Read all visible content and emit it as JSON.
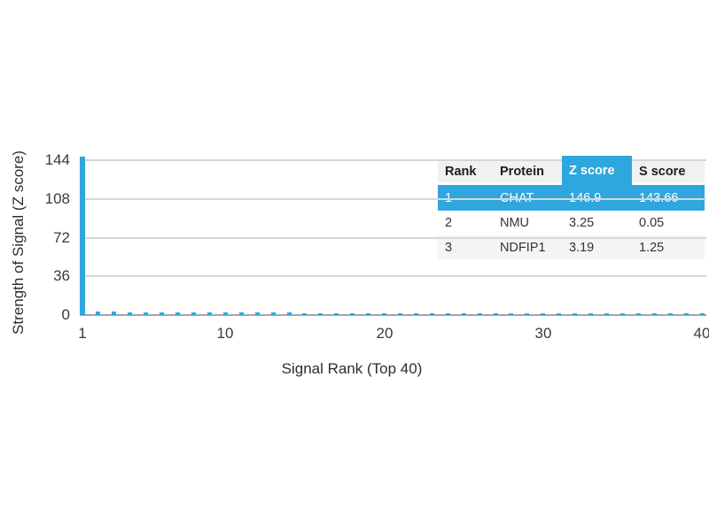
{
  "figure": {
    "background": "#ffffff",
    "accent_color": "#2fa6de",
    "grid_color": "#d6d6d6",
    "axis_color": "#a5a5a5",
    "text_color": "#2d2d2d",
    "row_alt_color": "#f5f5f5",
    "header_bg_color": "#f1f1f1"
  },
  "chart_data": {
    "type": "bar",
    "title": "",
    "xlabel": "Signal Rank (Top 40)",
    "ylabel": "Strength of Signal (Z score)",
    "x_ticks": [
      1,
      10,
      20,
      30,
      40
    ],
    "y_ticks": [
      0,
      36,
      72,
      108,
      144
    ],
    "xlim": [
      1,
      40
    ],
    "ylim": [
      0,
      152
    ],
    "grid": "horizontal",
    "legend": null,
    "bar_color": "#2fa6de",
    "x": [
      1,
      2,
      3,
      4,
      5,
      6,
      7,
      8,
      9,
      10,
      11,
      12,
      13,
      14,
      15,
      16,
      17,
      18,
      19,
      20,
      21,
      22,
      23,
      24,
      25,
      26,
      27,
      28,
      29,
      30,
      31,
      32,
      33,
      34,
      35,
      36,
      37,
      38,
      39,
      40
    ],
    "values": [
      146.9,
      3.25,
      3.19,
      2.6,
      2.55,
      2.5,
      2.45,
      2.4,
      2.35,
      2.3,
      2.25,
      2.2,
      2.15,
      2.1,
      2.05,
      2.0,
      1.95,
      1.9,
      1.85,
      1.8,
      1.78,
      1.75,
      1.72,
      1.7,
      1.68,
      1.65,
      1.62,
      1.6,
      1.58,
      1.55,
      1.52,
      1.5,
      1.48,
      1.45,
      1.42,
      1.4,
      1.38,
      1.35,
      1.32,
      1.3
    ]
  },
  "table": {
    "headers": [
      "Rank",
      "Protein",
      "Z score",
      "S score"
    ],
    "highlight_header": "Z score",
    "highlight_color": "#2fa6de",
    "rows": [
      {
        "rank": "1",
        "protein": "CHAT",
        "z_score": "146.9",
        "s_score": "143.66",
        "highlighted": true
      },
      {
        "rank": "2",
        "protein": "NMU",
        "z_score": "3.25",
        "s_score": "0.05",
        "highlighted": false
      },
      {
        "rank": "3",
        "protein": "NDFIP1",
        "z_score": "3.19",
        "s_score": "1.25",
        "highlighted": false
      }
    ]
  }
}
